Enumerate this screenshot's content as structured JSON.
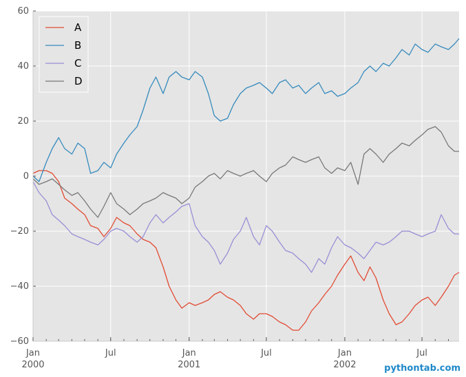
{
  "chart_data": {
    "type": "line",
    "title": "",
    "xlabel": "",
    "ylabel": "",
    "xlim": [
      "2000-01-01",
      "2002-09-26"
    ],
    "ylim": [
      -60,
      60
    ],
    "grid": true,
    "background": "#e5e5e5",
    "legend_position": "top-left",
    "y_ticks": [
      60,
      40,
      20,
      0,
      -20,
      -40,
      -60
    ],
    "y_tick_labels": [
      "60",
      "40",
      "20",
      "0",
      "−20",
      "−40",
      "−60"
    ],
    "x_ticks": [
      {
        "date": "2000-01-01",
        "label": "Jan",
        "year": "2000",
        "major": true
      },
      {
        "date": "2000-07-01",
        "label": "Jul",
        "year": "",
        "major": false
      },
      {
        "date": "2001-01-01",
        "label": "Jan",
        "year": "2001",
        "major": true
      },
      {
        "date": "2001-07-01",
        "label": "Jul",
        "year": "",
        "major": false
      },
      {
        "date": "2002-01-01",
        "label": "Jan",
        "year": "2002",
        "major": true
      },
      {
        "date": "2002-07-01",
        "label": "Jul",
        "year": "",
        "major": false
      }
    ],
    "series": [
      {
        "name": "A",
        "color": "#e24a33",
        "x": [
          "2000-01-01",
          "2000-01-15",
          "2000-02-01",
          "2000-02-15",
          "2000-03-01",
          "2000-03-15",
          "2000-04-01",
          "2000-04-15",
          "2000-05-01",
          "2000-05-15",
          "2000-06-01",
          "2000-06-15",
          "2000-07-01",
          "2000-07-15",
          "2000-08-01",
          "2000-08-15",
          "2000-09-01",
          "2000-09-15",
          "2000-10-01",
          "2000-10-15",
          "2000-11-01",
          "2000-11-15",
          "2000-12-01",
          "2000-12-15",
          "2001-01-01",
          "2001-01-15",
          "2001-02-01",
          "2001-02-15",
          "2001-03-01",
          "2001-03-15",
          "2001-04-01",
          "2001-04-15",
          "2001-05-01",
          "2001-05-15",
          "2001-06-01",
          "2001-06-15",
          "2001-07-01",
          "2001-07-15",
          "2001-08-01",
          "2001-08-15",
          "2001-09-01",
          "2001-09-15",
          "2001-10-01",
          "2001-10-15",
          "2001-11-01",
          "2001-11-15",
          "2001-12-01",
          "2001-12-15",
          "2002-01-01",
          "2002-01-15",
          "2002-02-01",
          "2002-02-15",
          "2002-03-01",
          "2002-03-15",
          "2002-04-01",
          "2002-04-15",
          "2002-05-01",
          "2002-05-15",
          "2002-06-01",
          "2002-06-15",
          "2002-07-01",
          "2002-07-15",
          "2002-08-01",
          "2002-08-15",
          "2002-09-01",
          "2002-09-15",
          "2002-09-26"
        ],
        "y": [
          1,
          2,
          2,
          1,
          -2,
          -8,
          -10,
          -12,
          -14,
          -18,
          -19,
          -22,
          -19,
          -15,
          -17,
          -18,
          -21,
          -23,
          -24,
          -26,
          -33,
          -40,
          -45,
          -48,
          -46,
          -47,
          -46,
          -45,
          -43,
          -42,
          -44,
          -45,
          -47,
          -50,
          -52,
          -50,
          -50,
          -51,
          -53,
          -54,
          -56,
          -56,
          -53,
          -49,
          -46,
          -43,
          -40,
          -36,
          -32,
          -29,
          -35,
          -38,
          -33,
          -37,
          -45,
          -50,
          -54,
          -53,
          -50,
          -47,
          -45,
          -44,
          -47,
          -44,
          -40,
          -36,
          -35
        ]
      },
      {
        "name": "B",
        "color": "#348abd",
        "x": [
          "2000-01-01",
          "2000-01-15",
          "2000-02-01",
          "2000-02-15",
          "2000-03-01",
          "2000-03-15",
          "2000-04-01",
          "2000-04-15",
          "2000-05-01",
          "2000-05-15",
          "2000-06-01",
          "2000-06-15",
          "2000-07-01",
          "2000-07-15",
          "2000-08-01",
          "2000-08-15",
          "2000-09-01",
          "2000-09-15",
          "2000-10-01",
          "2000-10-15",
          "2000-11-01",
          "2000-11-15",
          "2000-12-01",
          "2000-12-15",
          "2001-01-01",
          "2001-01-15",
          "2001-02-01",
          "2001-02-15",
          "2001-03-01",
          "2001-03-15",
          "2001-04-01",
          "2001-04-15",
          "2001-05-01",
          "2001-05-15",
          "2001-06-01",
          "2001-06-15",
          "2001-07-01",
          "2001-07-15",
          "2001-08-01",
          "2001-08-15",
          "2001-09-01",
          "2001-09-15",
          "2001-10-01",
          "2001-10-15",
          "2001-11-01",
          "2001-11-15",
          "2001-12-01",
          "2001-12-15",
          "2002-01-01",
          "2002-01-15",
          "2002-02-01",
          "2002-02-15",
          "2002-03-01",
          "2002-03-15",
          "2002-04-01",
          "2002-04-15",
          "2002-05-01",
          "2002-05-15",
          "2002-06-01",
          "2002-06-15",
          "2002-07-01",
          "2002-07-15",
          "2002-08-01",
          "2002-08-15",
          "2002-09-01",
          "2002-09-15",
          "2002-09-26"
        ],
        "y": [
          0,
          -2,
          5,
          10,
          14,
          10,
          8,
          12,
          10,
          1,
          2,
          5,
          3,
          8,
          12,
          15,
          18,
          24,
          32,
          36,
          30,
          36,
          38,
          36,
          35,
          38,
          36,
          30,
          22,
          20,
          21,
          26,
          30,
          32,
          33,
          34,
          32,
          30,
          34,
          35,
          32,
          33,
          30,
          32,
          34,
          30,
          31,
          29,
          30,
          32,
          34,
          38,
          40,
          38,
          41,
          40,
          43,
          46,
          44,
          48,
          46,
          45,
          48,
          47,
          46,
          48,
          50
        ]
      },
      {
        "name": "C",
        "color": "#988ed5",
        "x": [
          "2000-01-01",
          "2000-01-15",
          "2000-02-01",
          "2000-02-15",
          "2000-03-01",
          "2000-03-15",
          "2000-04-01",
          "2000-04-15",
          "2000-05-01",
          "2000-05-15",
          "2000-06-01",
          "2000-06-15",
          "2000-07-01",
          "2000-07-15",
          "2000-08-01",
          "2000-08-15",
          "2000-09-01",
          "2000-09-15",
          "2000-10-01",
          "2000-10-15",
          "2000-11-01",
          "2000-11-15",
          "2000-12-01",
          "2000-12-15",
          "2001-01-01",
          "2001-01-15",
          "2001-02-01",
          "2001-02-15",
          "2001-03-01",
          "2001-03-15",
          "2001-04-01",
          "2001-04-15",
          "2001-05-01",
          "2001-05-15",
          "2001-06-01",
          "2001-06-15",
          "2001-07-01",
          "2001-07-15",
          "2001-08-01",
          "2001-08-15",
          "2001-09-01",
          "2001-09-15",
          "2001-10-01",
          "2001-10-15",
          "2001-11-01",
          "2001-11-15",
          "2001-12-01",
          "2001-12-15",
          "2002-01-01",
          "2002-01-15",
          "2002-02-01",
          "2002-02-15",
          "2002-03-01",
          "2002-03-15",
          "2002-04-01",
          "2002-04-15",
          "2002-05-01",
          "2002-05-15",
          "2002-06-01",
          "2002-06-15",
          "2002-07-01",
          "2002-07-15",
          "2002-08-01",
          "2002-08-15",
          "2002-09-01",
          "2002-09-15",
          "2002-09-26"
        ],
        "y": [
          -2,
          -6,
          -9,
          -14,
          -16,
          -18,
          -21,
          -22,
          -23,
          -24,
          -25,
          -23,
          -20,
          -19,
          -20,
          -22,
          -24,
          -22,
          -17,
          -14,
          -17,
          -15,
          -13,
          -11,
          -10,
          -18,
          -22,
          -24,
          -27,
          -32,
          -28,
          -23,
          -20,
          -15,
          -22,
          -25,
          -18,
          -20,
          -24,
          -27,
          -28,
          -30,
          -32,
          -35,
          -30,
          -32,
          -26,
          -22,
          -25,
          -26,
          -28,
          -30,
          -27,
          -24,
          -25,
          -24,
          -22,
          -20,
          -20,
          -21,
          -22,
          -21,
          -20,
          -14,
          -19,
          -21,
          -21
        ]
      },
      {
        "name": "D",
        "color": "#777777",
        "x": [
          "2000-01-01",
          "2000-01-15",
          "2000-02-01",
          "2000-02-15",
          "2000-03-01",
          "2000-03-15",
          "2000-04-01",
          "2000-04-15",
          "2000-05-01",
          "2000-05-15",
          "2000-06-01",
          "2000-06-15",
          "2000-07-01",
          "2000-07-15",
          "2000-08-01",
          "2000-08-15",
          "2000-09-01",
          "2000-09-15",
          "2000-10-01",
          "2000-10-15",
          "2000-11-01",
          "2000-11-15",
          "2000-12-01",
          "2000-12-15",
          "2001-01-01",
          "2001-01-15",
          "2001-02-01",
          "2001-02-15",
          "2001-03-01",
          "2001-03-15",
          "2001-04-01",
          "2001-04-15",
          "2001-05-01",
          "2001-05-15",
          "2001-06-01",
          "2001-06-15",
          "2001-07-01",
          "2001-07-15",
          "2001-08-01",
          "2001-08-15",
          "2001-09-01",
          "2001-09-15",
          "2001-10-01",
          "2001-10-15",
          "2001-11-01",
          "2001-11-15",
          "2001-12-01",
          "2001-12-15",
          "2002-01-01",
          "2002-01-15",
          "2002-02-01",
          "2002-02-15",
          "2002-03-01",
          "2002-03-15",
          "2002-04-01",
          "2002-04-15",
          "2002-05-01",
          "2002-05-15",
          "2002-06-01",
          "2002-06-15",
          "2002-07-01",
          "2002-07-15",
          "2002-08-01",
          "2002-08-15",
          "2002-09-01",
          "2002-09-15",
          "2002-09-26"
        ],
        "y": [
          -1,
          -3,
          -2,
          -1,
          -3,
          -5,
          -7,
          -6,
          -9,
          -12,
          -15,
          -11,
          -6,
          -10,
          -12,
          -14,
          -12,
          -10,
          -9,
          -8,
          -6,
          -7,
          -8,
          -10,
          -8,
          -4,
          -2,
          0,
          1,
          -1,
          2,
          1,
          0,
          1,
          2,
          0,
          -2,
          1,
          3,
          4,
          7,
          6,
          5,
          6,
          7,
          3,
          1,
          3,
          2,
          5,
          -3,
          8,
          10,
          8,
          5,
          8,
          10,
          12,
          11,
          13,
          15,
          17,
          18,
          16,
          11,
          9,
          9
        ]
      }
    ]
  },
  "watermark": "pythontab.com"
}
